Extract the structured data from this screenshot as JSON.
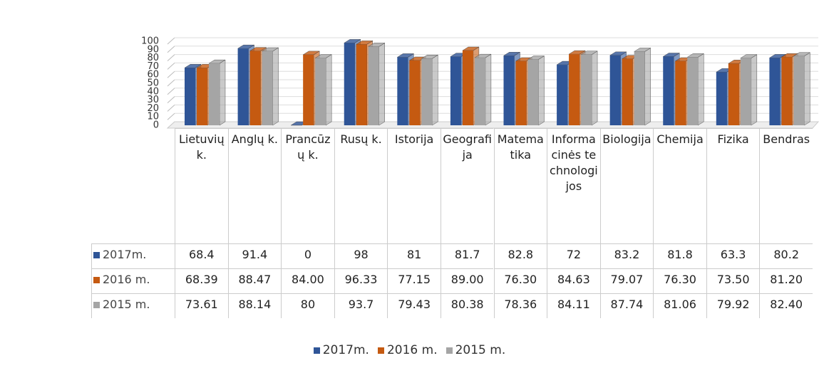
{
  "chart_data": {
    "type": "bar3d",
    "categories": [
      "Lietuvių k.",
      "Anglų k.",
      "Prancūzų k.",
      "Rusų k.",
      "Istorija",
      "Geografija",
      "Matematika",
      "Informacinės technologijos",
      "Biologija",
      "Chemija",
      "Fizika",
      "Bendras"
    ],
    "series": [
      {
        "name": "2017m.",
        "color": "#2f5597",
        "values": [
          68.4,
          91.4,
          0,
          98,
          81,
          81.7,
          82.8,
          72,
          83.2,
          81.8,
          63.3,
          80.2
        ]
      },
      {
        "name": "2016 m.",
        "color": "#c55a11",
        "values": [
          68.39,
          88.47,
          84,
          96.33,
          77.15,
          89,
          76.3,
          84.63,
          79.07,
          76.3,
          73.5,
          81.2
        ],
        "value_labels": [
          "68.39",
          "88.47",
          "84.00",
          "96.33",
          "77.15",
          "89.00",
          "76.30",
          "84.63",
          "79.07",
          "76.30",
          "73.50",
          "81.20"
        ]
      },
      {
        "name": "2015 m.",
        "color": "#a5a5a5",
        "values": [
          73.61,
          88.14,
          80,
          93.7,
          79.43,
          80.38,
          78.36,
          84.11,
          87.74,
          81.06,
          79.92,
          82.4
        ],
        "value_labels": [
          "73.61",
          "88.14",
          "80",
          "93.7",
          "79.43",
          "80.38",
          "78.36",
          "84.11",
          "87.74",
          "81.06",
          "79.92",
          "82.40"
        ]
      }
    ],
    "ylim": [
      0,
      100
    ],
    "yticks": [
      0,
      10,
      20,
      30,
      40,
      50,
      60,
      70,
      80,
      90,
      100
    ],
    "grid": true,
    "legend": "bottom"
  }
}
